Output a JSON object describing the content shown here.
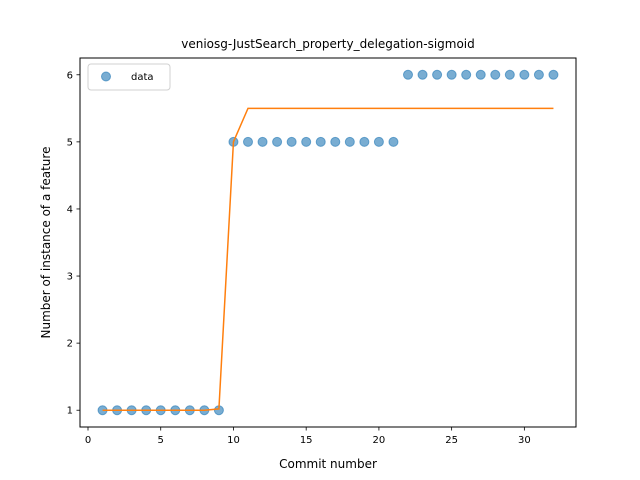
{
  "chart_data": {
    "type": "scatter",
    "title": "veniosg-JustSearch_property_delegation-sigmoid",
    "xlabel": "Commit number",
    "ylabel": "Number of instance of a feature",
    "xlim": [
      -0.55,
      33.55
    ],
    "ylim": [
      0.75,
      6.25
    ],
    "xticks": [
      0,
      5,
      10,
      15,
      20,
      25,
      30
    ],
    "yticks": [
      1,
      2,
      3,
      4,
      5,
      6
    ],
    "grid": false,
    "legend": {
      "placement": "top-left",
      "entries": [
        "data"
      ]
    },
    "colors": {
      "data": "#1f77b4",
      "fit": "#ff7f0e"
    },
    "series": [
      {
        "name": "data",
        "kind": "scatter",
        "x": [
          1,
          2,
          3,
          4,
          5,
          6,
          7,
          8,
          9,
          10,
          11,
          12,
          13,
          14,
          15,
          16,
          17,
          18,
          19,
          20,
          21,
          22,
          23,
          24,
          25,
          26,
          27,
          28,
          29,
          30,
          31,
          32
        ],
        "y": [
          1,
          1,
          1,
          1,
          1,
          1,
          1,
          1,
          1,
          5,
          5,
          5,
          5,
          5,
          5,
          5,
          5,
          5,
          5,
          5,
          5,
          6,
          6,
          6,
          6,
          6,
          6,
          6,
          6,
          6,
          6,
          6
        ]
      },
      {
        "kind": "line",
        "x": [
          1,
          2,
          3,
          4,
          5,
          6,
          7,
          8,
          9,
          10,
          11,
          12,
          13,
          14,
          15,
          16,
          17,
          18,
          19,
          20,
          21,
          22,
          23,
          24,
          25,
          26,
          27,
          28,
          29,
          30,
          31,
          32
        ],
        "y": [
          1,
          1,
          1,
          1,
          1,
          1,
          1,
          1,
          1.02,
          5.0,
          5.5,
          5.5,
          5.5,
          5.5,
          5.5,
          5.5,
          5.5,
          5.5,
          5.5,
          5.5,
          5.5,
          5.5,
          5.5,
          5.5,
          5.5,
          5.5,
          5.5,
          5.5,
          5.5,
          5.5,
          5.5,
          5.5
        ]
      }
    ]
  }
}
